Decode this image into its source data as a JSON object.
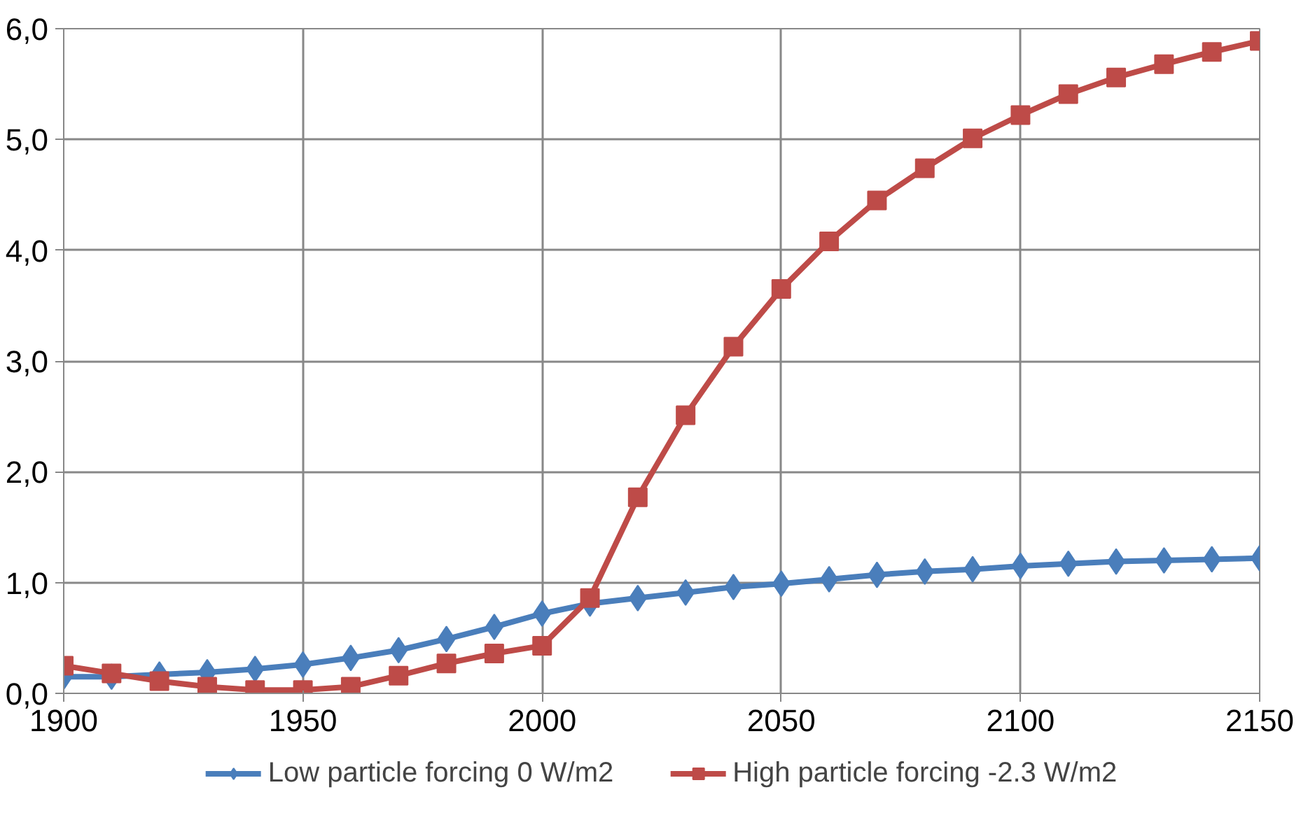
{
  "chart_data": {
    "type": "line",
    "x": [
      1900,
      1910,
      1920,
      1930,
      1940,
      1950,
      1960,
      1970,
      1980,
      1990,
      2000,
      2010,
      2020,
      2030,
      2040,
      2050,
      2060,
      2070,
      2080,
      2090,
      2100,
      2110,
      2120,
      2130,
      2140,
      2150
    ],
    "series": [
      {
        "name": "Low particle forcing 0 W/m2",
        "color": "#4a7ebb",
        "marker": "diamond",
        "values": [
          0.15,
          0.15,
          0.17,
          0.19,
          0.22,
          0.26,
          0.32,
          0.39,
          0.49,
          0.6,
          0.72,
          0.81,
          0.86,
          0.91,
          0.96,
          0.99,
          1.03,
          1.07,
          1.1,
          1.12,
          1.15,
          1.17,
          1.19,
          1.2,
          1.21,
          1.22
        ]
      },
      {
        "name": "High particle forcing -2.3 W/m2",
        "color": "#be4b48",
        "marker": "square",
        "values": [
          0.25,
          0.18,
          0.11,
          0.06,
          0.03,
          0.03,
          0.06,
          0.16,
          0.27,
          0.36,
          0.43,
          0.86,
          1.77,
          2.51,
          3.13,
          3.65,
          4.08,
          4.45,
          4.74,
          5.01,
          5.22,
          5.41,
          5.56,
          5.68,
          5.79,
          5.89
        ]
      }
    ],
    "xlim": [
      1900,
      2150
    ],
    "xticks": [
      1900,
      1950,
      2000,
      2050,
      2100,
      2150
    ],
    "ylim": [
      0,
      6
    ],
    "yticks": [
      {
        "value": 0,
        "label": "0,0"
      },
      {
        "value": 1,
        "label": "1,0"
      },
      {
        "value": 2,
        "label": "2,0"
      },
      {
        "value": 3,
        "label": "3,0"
      },
      {
        "value": 4,
        "label": "4,0"
      },
      {
        "value": 5,
        "label": "5,0"
      },
      {
        "value": 6,
        "label": "6,0"
      }
    ],
    "grid": true,
    "legend": "bottom",
    "line_style": "solid"
  }
}
